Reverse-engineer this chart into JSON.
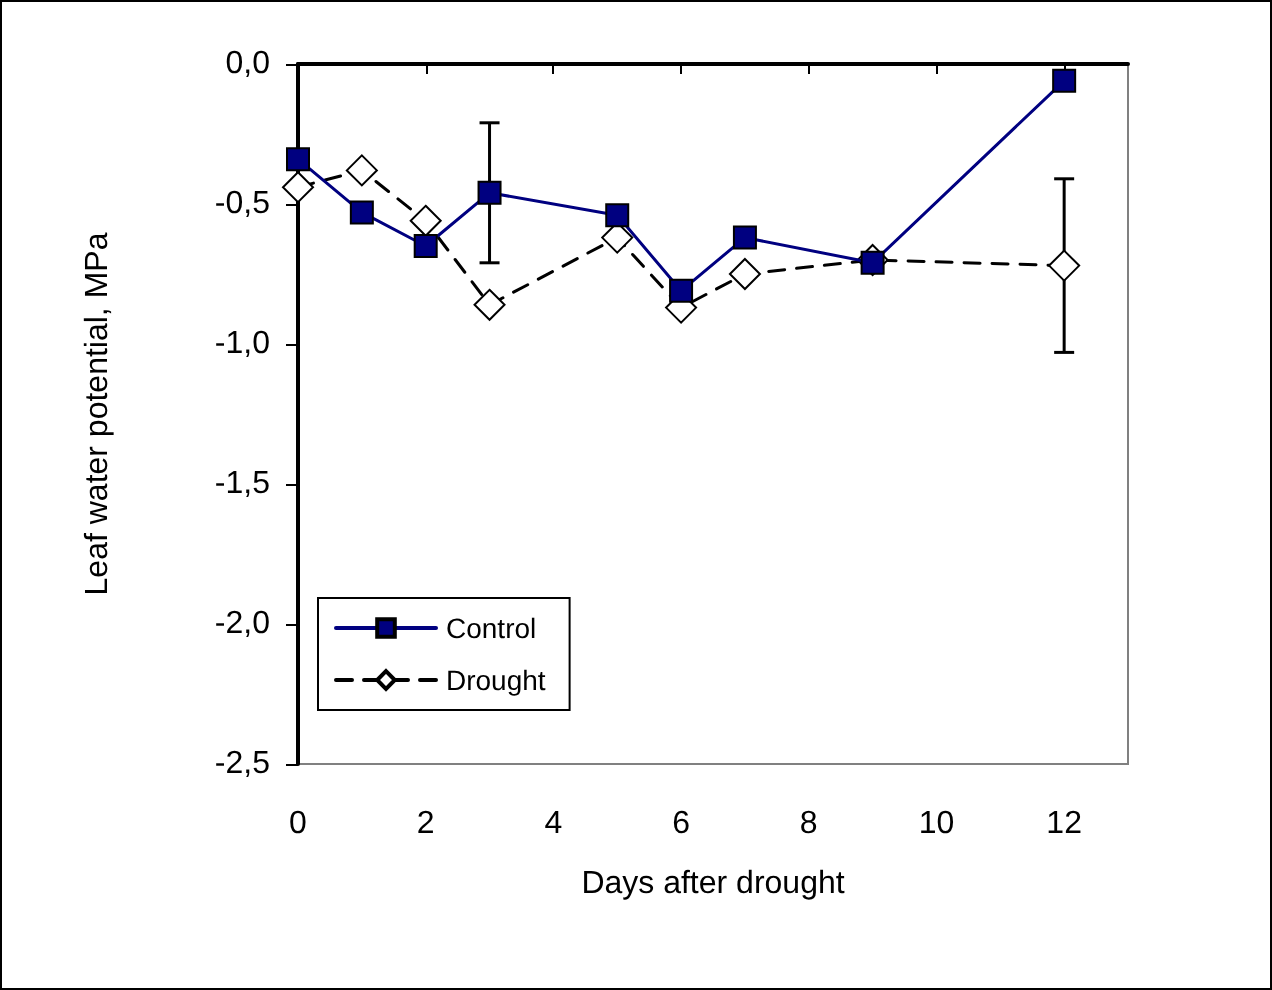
{
  "chart_data": {
    "type": "line",
    "xlabel": "Days after drought",
    "ylabel": "Leaf water potential, MPa",
    "x": [
      0,
      1,
      2,
      3,
      5,
      6,
      7,
      9,
      12
    ],
    "series": [
      {
        "name": "Control",
        "color": "#000080",
        "marker": "square",
        "line_style": "solid",
        "values": [
          -0.34,
          -0.53,
          -0.65,
          -0.46,
          -0.54,
          -0.81,
          -0.62,
          -0.71,
          -0.06
        ],
        "errors": [
          null,
          null,
          null,
          0.25,
          null,
          null,
          null,
          null,
          null
        ]
      },
      {
        "name": "Drought",
        "color": "#000000",
        "marker": "diamond",
        "line_style": "dashed",
        "values": [
          -0.44,
          -0.38,
          -0.56,
          -0.86,
          -0.62,
          -0.87,
          -0.75,
          -0.7,
          -0.72
        ],
        "errors": [
          null,
          null,
          null,
          null,
          null,
          null,
          null,
          null,
          0.31
        ]
      }
    ],
    "xlim": [
      0,
      13
    ],
    "xticks": [
      0,
      2,
      4,
      6,
      8,
      10,
      12
    ],
    "ylim": [
      -2.5,
      0
    ],
    "yticks": [
      {
        "value": -2.5,
        "label": "-2,5"
      },
      {
        "value": -2,
        "label": "-2,0"
      },
      {
        "value": -1.5,
        "label": "-1,5"
      },
      {
        "value": -1,
        "label": "-1,0"
      },
      {
        "value": -0.5,
        "label": "-0,5"
      },
      {
        "value": 0,
        "label": "0,0"
      }
    ],
    "grid": false,
    "legend": "bottom left"
  }
}
